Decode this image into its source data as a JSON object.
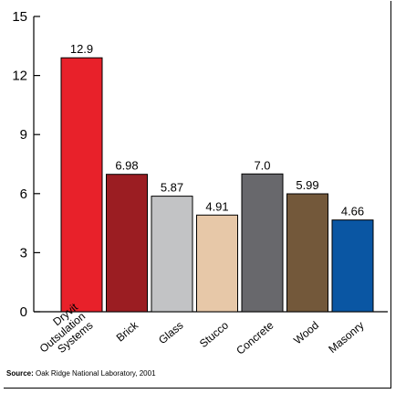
{
  "chart_data": {
    "type": "bar",
    "categories": [
      [
        "Dryvit",
        "Outsulation",
        "Systems"
      ],
      [
        "Brick"
      ],
      [
        "Glass"
      ],
      [
        "Stucco"
      ],
      [
        "Concrete"
      ],
      [
        "Wood"
      ],
      [
        "Masonry"
      ]
    ],
    "values": [
      12.9,
      6.98,
      5.87,
      4.91,
      7.0,
      5.99,
      4.66
    ],
    "value_labels": [
      "12.9",
      "6.98",
      "5.87",
      "4.91",
      "7.0",
      "5.99",
      "4.66"
    ],
    "colors": [
      "#e8212a",
      "#9b1d22",
      "#c2c3c5",
      "#e7c8a8",
      "#68686c",
      "#73583a",
      "#0a56a3"
    ],
    "ylim": [
      0,
      15
    ],
    "yticks": [
      "0",
      "3",
      "6",
      "9",
      "12",
      "15"
    ],
    "grid": false,
    "title": "",
    "xlabel": "",
    "ylabel": ""
  },
  "source": {
    "label": "Source:",
    "text": "Oak Ridge National Laboratory, 2001"
  }
}
